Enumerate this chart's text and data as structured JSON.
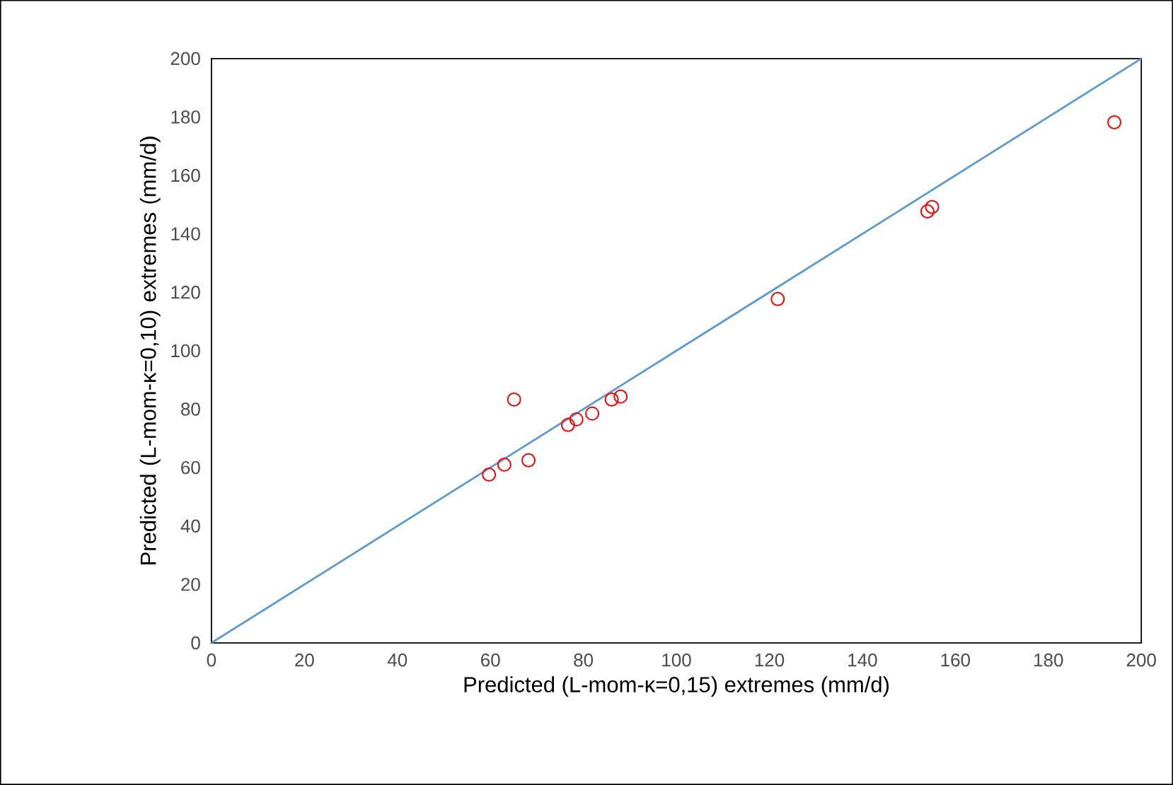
{
  "chart_data": {
    "type": "scatter",
    "xlabel": "Predicted (L-mom-κ=0,15) extremes (mm/d)",
    "ylabel": "Predicted (L-mom-κ=0,10) extremes (mm/d)",
    "xlim": [
      0,
      200
    ],
    "ylim": [
      0,
      200
    ],
    "xticks": [
      0,
      20,
      40,
      60,
      80,
      100,
      120,
      140,
      160,
      180,
      200
    ],
    "yticks": [
      0,
      20,
      40,
      60,
      80,
      100,
      120,
      140,
      160,
      180,
      200
    ],
    "marker": "circle",
    "series": [
      {
        "color": "#ff0000",
        "x": [
          59.7,
          63.0,
          65.1,
          68.2,
          76.7,
          78.5,
          81.9,
          86.1,
          88.0,
          121.8,
          154.0,
          155.0,
          194.2
        ],
        "values": [
          57.6,
          61.0,
          83.3,
          62.5,
          74.6,
          76.5,
          78.5,
          83.3,
          84.3,
          117.7,
          147.7,
          149.2,
          178.2
        ]
      },
      {
        "type": "line",
        "color": "#5b9bd5",
        "marker": "none",
        "line_style": "solid",
        "x": [
          0,
          200
        ],
        "values": [
          0,
          200
        ]
      }
    ]
  }
}
